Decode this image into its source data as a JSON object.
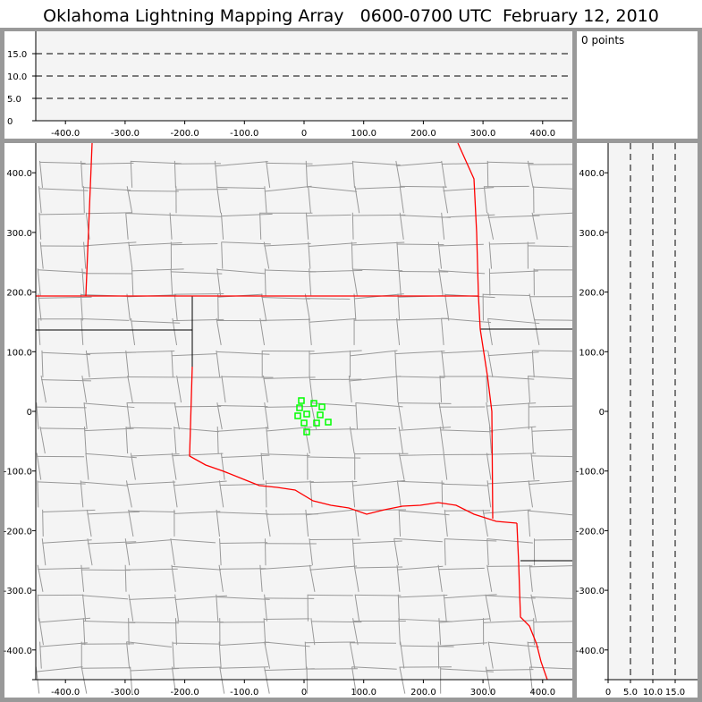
{
  "title": "Oklahoma Lightning Mapping Array   0600-0700 UTC  February 12, 2010",
  "count_label": "0 points",
  "colors": {
    "plot_bg": "#f4f4f4",
    "border": "#999999",
    "county": "#999999",
    "state": "#ff0000",
    "source": "#00ff00"
  },
  "height_panel": {
    "y_ticks": [
      "0",
      "5.0",
      "10.0",
      "15.0"
    ],
    "x_ticks": [
      "-400.0",
      "-300.0",
      "-200.0",
      "-100.0",
      "0",
      "100.0",
      "200.0",
      "300.0",
      "400.0"
    ],
    "dashed_levels_km": [
      5,
      10,
      15
    ]
  },
  "plan_view": {
    "x_ticks": [
      "-400.0",
      "-300.0",
      "-200.0",
      "-100.0",
      "0",
      "100.0",
      "200.0",
      "300.0",
      "400.0"
    ],
    "y_ticks": [
      "400.0",
      "300.0",
      "200.0",
      "100.0",
      "0",
      "-100.0",
      "-200.0",
      "-300.0",
      "-400.0"
    ],
    "sources_km": [
      [
        -4.5,
        18
      ],
      [
        -7.5,
        6
      ],
      [
        16.5,
        13.5
      ],
      [
        30,
        7.5
      ],
      [
        -10.5,
        -7.5
      ],
      [
        4.5,
        -4.5
      ],
      [
        27,
        -6
      ],
      [
        0,
        -19.5
      ],
      [
        21,
        -19.5
      ],
      [
        40.5,
        -18
      ],
      [
        4.5,
        -34.5
      ]
    ]
  },
  "side_panel": {
    "x_ticks": [
      "0",
      "5.0",
      "10.0",
      "15.0"
    ],
    "y_ticks": [
      "400.0",
      "300.0",
      "200.0",
      "100.0",
      "0",
      "-100.0",
      "-200.0",
      "-300.0",
      "-400.0"
    ],
    "dashed_levels_km": [
      5,
      10,
      15
    ]
  }
}
